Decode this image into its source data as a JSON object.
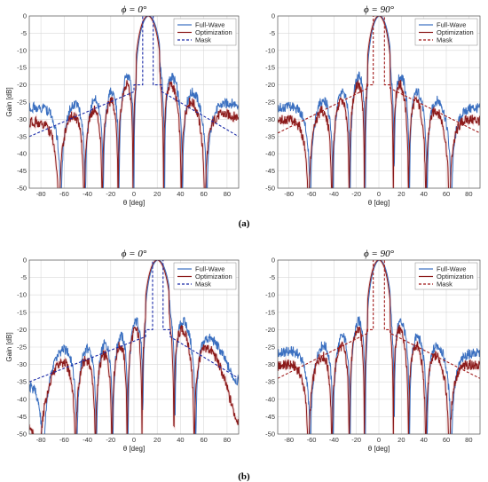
{
  "figure": {
    "captions": [
      "(a)",
      "(b)"
    ]
  },
  "colors": {
    "full_wave": "#3a6fc0",
    "optimization": "#8b1a1a",
    "mask_blue": "#1a2aa8",
    "mask_red": "#a01818",
    "grid": "#d9d9d9"
  },
  "chart_data": [
    {
      "type": "line",
      "title": "ϕ = 0°",
      "xlabel": "θ [deg]",
      "ylabel": "Gain [dB]",
      "xlim": [
        -90,
        90
      ],
      "ylim": [
        -50,
        0
      ],
      "xticks": [
        -80,
        -60,
        -40,
        -20,
        0,
        20,
        40,
        60,
        80
      ],
      "yticks": [
        0,
        -5,
        -10,
        -15,
        -20,
        -25,
        -30,
        -35,
        -40,
        -45,
        -50
      ],
      "grid": true,
      "legend": "top-right",
      "legend_entries": [
        "Full-Wave",
        "Optimization",
        "Mask"
      ],
      "pattern": {
        "center": 12,
        "nulls": 9,
        "fw_env": 0.8,
        "opt_env": 1.0
      },
      "mask_color": "blue",
      "mask": {
        "x": [
          -90,
          0,
          0,
          7.5,
          7.5,
          16.5,
          16.5,
          24,
          24,
          90
        ],
        "y": [
          -35,
          -22,
          -20,
          -20,
          0,
          0,
          -20,
          -20,
          -22,
          -35
        ]
      }
    },
    {
      "type": "line",
      "title": "ϕ = 90°",
      "xlabel": "θ [deg]",
      "ylabel": "",
      "xlim": [
        -90,
        90
      ],
      "ylim": [
        -50,
        0
      ],
      "xticks": [
        -80,
        -60,
        -40,
        -20,
        0,
        20,
        40,
        60,
        80
      ],
      "yticks": [
        0,
        -5,
        -10,
        -15,
        -20,
        -25,
        -30,
        -35,
        -40,
        -45,
        -50
      ],
      "grid": true,
      "legend": "top-right",
      "legend_entries": [
        "Full-Wave",
        "Optimization",
        "Mask"
      ],
      "pattern": {
        "center": 0,
        "nulls": 9,
        "fw_env": 0.8,
        "opt_env": 1.0
      },
      "mask_color": "red",
      "mask": {
        "x": [
          -90,
          -10,
          -10,
          -5,
          -5,
          5,
          5,
          10,
          10,
          90
        ],
        "y": [
          -34,
          -21,
          -20,
          -20,
          0,
          0,
          -20,
          -20,
          -21,
          -34
        ]
      }
    },
    {
      "type": "line",
      "title": "ϕ = 0°",
      "xlabel": "θ [deg]",
      "ylabel": "Gain [dB]",
      "xlim": [
        -90,
        90
      ],
      "ylim": [
        -50,
        0
      ],
      "xticks": [
        -80,
        -60,
        -40,
        -20,
        0,
        20,
        40,
        60,
        80
      ],
      "yticks": [
        0,
        -5,
        -10,
        -15,
        -20,
        -25,
        -30,
        -35,
        -40,
        -45,
        -50
      ],
      "grid": true,
      "legend": "top-right",
      "legend_entries": [
        "Full-Wave",
        "Optimization",
        "Mask"
      ],
      "pattern": {
        "center": 20,
        "nulls": 9,
        "fw_env": 0.8,
        "opt_env": 1.0
      },
      "mask_color": "blue",
      "mask": {
        "x": [
          -90,
          10,
          10,
          16,
          16,
          25,
          25,
          31,
          31,
          90
        ],
        "y": [
          -35,
          -22,
          -20,
          -20,
          0,
          0,
          -20,
          -20,
          -22,
          -34
        ]
      }
    },
    {
      "type": "line",
      "title": "ϕ = 90°",
      "xlabel": "θ [deg]",
      "ylabel": "",
      "xlim": [
        -90,
        90
      ],
      "ylim": [
        -50,
        0
      ],
      "xticks": [
        -80,
        -60,
        -40,
        -20,
        0,
        20,
        40,
        60,
        80
      ],
      "yticks": [
        0,
        -5,
        -10,
        -15,
        -20,
        -25,
        -30,
        -35,
        -40,
        -45,
        -50
      ],
      "grid": true,
      "legend": "top-right",
      "legend_entries": [
        "Full-Wave",
        "Optimization",
        "Mask"
      ],
      "pattern": {
        "center": 0,
        "nulls": 9,
        "fw_env": 0.8,
        "opt_env": 1.0
      },
      "mask_color": "red",
      "mask": {
        "x": [
          -90,
          -10,
          -10,
          -5,
          -5,
          5,
          5,
          10,
          10,
          90
        ],
        "y": [
          -34,
          -21,
          -20,
          -20,
          0,
          0,
          -20,
          -20,
          -21,
          -34
        ]
      }
    }
  ]
}
